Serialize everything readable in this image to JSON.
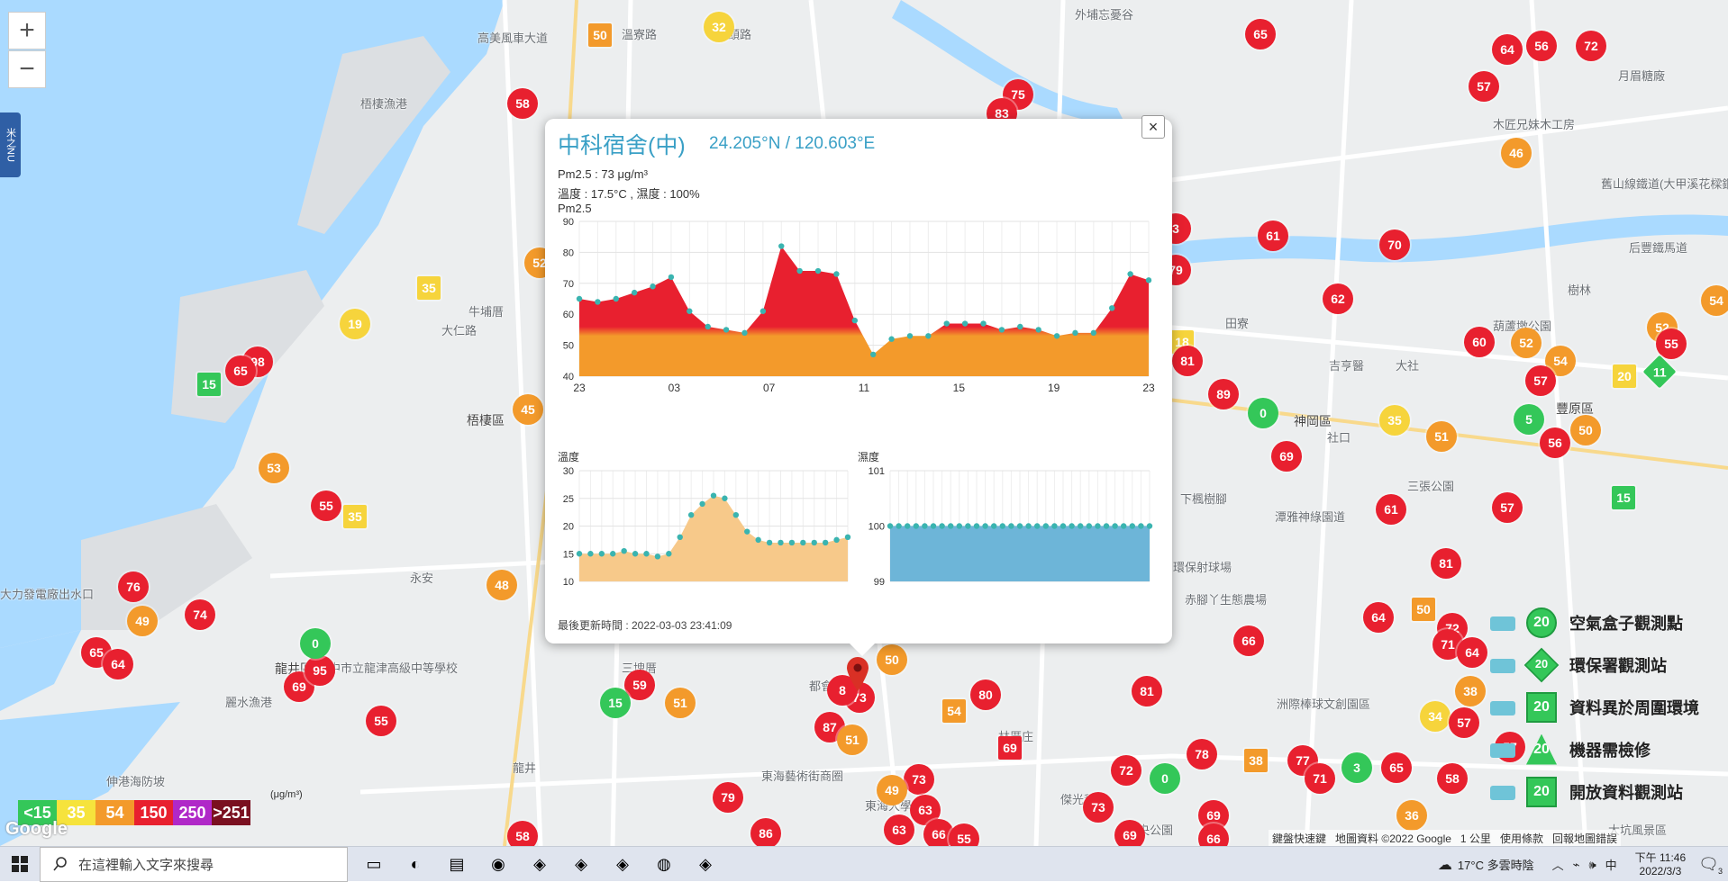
{
  "zoom": {
    "in_label": "+",
    "out_label": "−"
  },
  "side_tab": {
    "label": "米之NU"
  },
  "map_labels": [
    {
      "text": "高美風車大道",
      "x": 530,
      "y": 32
    },
    {
      "text": "梧棲漁港",
      "x": 400,
      "y": 105
    },
    {
      "text": "梧棲區",
      "x": 518,
      "y": 457,
      "dark": true
    },
    {
      "text": "牛埔厝",
      "x": 520,
      "y": 336
    },
    {
      "text": "大仁路",
      "x": 490,
      "y": 357
    },
    {
      "text": "龍井區",
      "x": 305,
      "y": 733,
      "dark": true
    },
    {
      "text": "臺中市立龍津高級中等學校",
      "x": 352,
      "y": 732
    },
    {
      "text": "麗水漁港",
      "x": 250,
      "y": 770
    },
    {
      "text": "大力發電廠出水口",
      "x": 0,
      "y": 650
    },
    {
      "text": "伸港海防坡",
      "x": 118,
      "y": 858
    },
    {
      "text": "永安",
      "x": 455,
      "y": 632
    },
    {
      "text": "三塊厝",
      "x": 690,
      "y": 732
    },
    {
      "text": "龍井",
      "x": 569,
      "y": 843
    },
    {
      "text": "東海藝術街商圈",
      "x": 845,
      "y": 852
    },
    {
      "text": "東海大學",
      "x": 960,
      "y": 885
    },
    {
      "text": "都會",
      "x": 898,
      "y": 752
    },
    {
      "text": "林厝庄",
      "x": 1108,
      "y": 808
    },
    {
      "text": "傑光科技",
      "x": 1177,
      "y": 878
    },
    {
      "text": "中央公園",
      "x": 1250,
      "y": 912
    },
    {
      "text": "洲際棒球文創園區",
      "x": 1417,
      "y": 772
    },
    {
      "text": "環保射球場",
      "x": 1302,
      "y": 620
    },
    {
      "text": "赤腳丫生態農場",
      "x": 1315,
      "y": 656
    },
    {
      "text": "下楓樹腳",
      "x": 1310,
      "y": 544
    },
    {
      "text": "潭雅神綠園道",
      "x": 1415,
      "y": 564
    },
    {
      "text": "三張公園",
      "x": 1562,
      "y": 530
    },
    {
      "text": "神岡區",
      "x": 1436,
      "y": 458,
      "dark": true
    },
    {
      "text": "社口",
      "x": 1473,
      "y": 476
    },
    {
      "text": "大社",
      "x": 1549,
      "y": 396
    },
    {
      "text": "吉亨醫",
      "x": 1475,
      "y": 396
    },
    {
      "text": "田寮",
      "x": 1360,
      "y": 349
    },
    {
      "text": "后豐鐵馬道",
      "x": 1808,
      "y": 265
    },
    {
      "text": "舊山線鐵道(大甲溪花樑鋼)",
      "x": 1777,
      "y": 194
    },
    {
      "text": "豐原區",
      "x": 1727,
      "y": 444,
      "dark": true
    },
    {
      "text": "葫蘆墩公園",
      "x": 1657,
      "y": 352
    },
    {
      "text": "樹林",
      "x": 1740,
      "y": 312
    },
    {
      "text": "木匠兄妹木工房",
      "x": 1657,
      "y": 128
    },
    {
      "text": "月眉糖廠",
      "x": 1796,
      "y": 74
    },
    {
      "text": "外埔忘憂谷",
      "x": 1193,
      "y": 6
    },
    {
      "text": "大坑風景區",
      "x": 1785,
      "y": 912
    },
    {
      "text": "溪頭路",
      "x": 795,
      "y": 28
    },
    {
      "text": "溫寮路",
      "x": 690,
      "y": 28
    }
  ],
  "markers": [
    {
      "v": "58",
      "x": 580,
      "y": 115,
      "c": "#e8202f"
    },
    {
      "v": "50",
      "x": 666,
      "y": 39,
      "c": "#f39a2b",
      "shape": "sq"
    },
    {
      "v": "32",
      "x": 798,
      "y": 30,
      "c": "#f6d43c"
    },
    {
      "v": "75",
      "x": 1130,
      "y": 105,
      "c": "#e8202f"
    },
    {
      "v": "83",
      "x": 1112,
      "y": 126,
      "c": "#e8202f"
    },
    {
      "v": "65",
      "x": 1399,
      "y": 38,
      "c": "#e8202f"
    },
    {
      "v": "64",
      "x": 1673,
      "y": 55,
      "c": "#e8202f"
    },
    {
      "v": "56",
      "x": 1711,
      "y": 51,
      "c": "#e8202f"
    },
    {
      "v": "72",
      "x": 1766,
      "y": 51,
      "c": "#e8202f"
    },
    {
      "v": "57",
      "x": 1647,
      "y": 96,
      "c": "#e8202f"
    },
    {
      "v": "46",
      "x": 1683,
      "y": 170,
      "c": "#f39a2b"
    },
    {
      "v": "61",
      "x": 1413,
      "y": 262,
      "c": "#e8202f"
    },
    {
      "v": "70",
      "x": 1548,
      "y": 272,
      "c": "#e8202f"
    },
    {
      "v": "62",
      "x": 1485,
      "y": 332,
      "c": "#e8202f"
    },
    {
      "v": "60",
      "x": 1642,
      "y": 380,
      "c": "#e8202f"
    },
    {
      "v": "52",
      "x": 1694,
      "y": 381,
      "c": "#f39a2b"
    },
    {
      "v": "54",
      "x": 1732,
      "y": 401,
      "c": "#f39a2b"
    },
    {
      "v": "57",
      "x": 1710,
      "y": 423,
      "c": "#e8202f"
    },
    {
      "v": "52",
      "x": 1845,
      "y": 364,
      "c": "#f39a2b"
    },
    {
      "v": "55",
      "x": 1855,
      "y": 382,
      "c": "#e8202f"
    },
    {
      "v": "11",
      "x": 1842,
      "y": 413,
      "c": "#34c759",
      "shape": "dm"
    },
    {
      "v": "20",
      "x": 1803,
      "y": 418,
      "c": "#f6d43c",
      "shape": "sq"
    },
    {
      "v": "54",
      "x": 1905,
      "y": 334,
      "c": "#f39a2b"
    },
    {
      "v": "89",
      "x": 1358,
      "y": 438,
      "c": "#e8202f"
    },
    {
      "v": "0",
      "x": 1402,
      "y": 459,
      "c": "#34c759"
    },
    {
      "v": "35",
      "x": 1548,
      "y": 467,
      "c": "#f6d43c"
    },
    {
      "v": "51",
      "x": 1600,
      "y": 485,
      "c": "#f39a2b"
    },
    {
      "v": "5",
      "x": 1697,
      "y": 466,
      "c": "#34c759"
    },
    {
      "v": "50",
      "x": 1760,
      "y": 478,
      "c": "#f39a2b"
    },
    {
      "v": "56",
      "x": 1726,
      "y": 492,
      "c": "#e8202f"
    },
    {
      "v": "69",
      "x": 1428,
      "y": 507,
      "c": "#e8202f"
    },
    {
      "v": "61",
      "x": 1544,
      "y": 566,
      "c": "#e8202f"
    },
    {
      "v": "57",
      "x": 1673,
      "y": 564,
      "c": "#e8202f"
    },
    {
      "v": "15",
      "x": 1802,
      "y": 553,
      "c": "#34c759",
      "shape": "sq"
    },
    {
      "v": "81",
      "x": 1605,
      "y": 626,
      "c": "#e8202f"
    },
    {
      "v": "64",
      "x": 1530,
      "y": 686,
      "c": "#e8202f"
    },
    {
      "v": "50",
      "x": 1580,
      "y": 677,
      "c": "#f39a2b",
      "shape": "sq"
    },
    {
      "v": "72",
      "x": 1612,
      "y": 698,
      "c": "#e8202f"
    },
    {
      "v": "71",
      "x": 1607,
      "y": 716,
      "c": "#e8202f"
    },
    {
      "v": "64",
      "x": 1634,
      "y": 725,
      "c": "#e8202f"
    },
    {
      "v": "66",
      "x": 1386,
      "y": 712,
      "c": "#e8202f"
    },
    {
      "v": "38",
      "x": 1632,
      "y": 768,
      "c": "#f39a2b"
    },
    {
      "v": "34",
      "x": 1593,
      "y": 796,
      "c": "#f6d43c"
    },
    {
      "v": "57",
      "x": 1625,
      "y": 803,
      "c": "#e8202f"
    },
    {
      "v": "81",
      "x": 1273,
      "y": 768,
      "c": "#e8202f"
    },
    {
      "v": "80",
      "x": 1094,
      "y": 772,
      "c": "#e8202f"
    },
    {
      "v": "54",
      "x": 1059,
      "y": 790,
      "c": "#f39a2b",
      "shape": "sq"
    },
    {
      "v": "69",
      "x": 1121,
      "y": 831,
      "c": "#e8202f",
      "shape": "sq"
    },
    {
      "v": "78",
      "x": 1334,
      "y": 838,
      "c": "#e8202f"
    },
    {
      "v": "38",
      "x": 1394,
      "y": 845,
      "c": "#f39a2b",
      "shape": "sq"
    },
    {
      "v": "77",
      "x": 1446,
      "y": 845,
      "c": "#e8202f"
    },
    {
      "v": "71",
      "x": 1465,
      "y": 865,
      "c": "#e8202f"
    },
    {
      "v": "3",
      "x": 1506,
      "y": 853,
      "c": "#34c759"
    },
    {
      "v": "65",
      "x": 1550,
      "y": 853,
      "c": "#e8202f"
    },
    {
      "v": "58",
      "x": 1612,
      "y": 865,
      "c": "#e8202f"
    },
    {
      "v": "72",
      "x": 1250,
      "y": 856,
      "c": "#e8202f"
    },
    {
      "v": "0",
      "x": 1293,
      "y": 865,
      "c": "#34c759"
    },
    {
      "v": "73",
      "x": 1219,
      "y": 897,
      "c": "#e8202f"
    },
    {
      "v": "69",
      "x": 1347,
      "y": 906,
      "c": "#e8202f"
    },
    {
      "v": "36",
      "x": 1567,
      "y": 906,
      "c": "#f39a2b"
    },
    {
      "v": "69",
      "x": 1254,
      "y": 928,
      "c": "#e8202f"
    },
    {
      "v": "66",
      "x": 1347,
      "y": 932,
      "c": "#e8202f"
    },
    {
      "v": "57",
      "x": 1676,
      "y": 830,
      "c": "#e8202f"
    },
    {
      "v": "50",
      "x": 990,
      "y": 733,
      "c": "#f39a2b"
    },
    {
      "v": "73",
      "x": 954,
      "y": 775,
      "c": "#e8202f"
    },
    {
      "v": "8",
      "x": 935,
      "y": 767,
      "c": "#e8202f"
    },
    {
      "v": "87",
      "x": 921,
      "y": 808,
      "c": "#e8202f"
    },
    {
      "v": "51",
      "x": 946,
      "y": 822,
      "c": "#f39a2b"
    },
    {
      "v": "73",
      "x": 1020,
      "y": 866,
      "c": "#e8202f"
    },
    {
      "v": "49",
      "x": 990,
      "y": 878,
      "c": "#f39a2b"
    },
    {
      "v": "63",
      "x": 1027,
      "y": 900,
      "c": "#e8202f"
    },
    {
      "v": "63",
      "x": 998,
      "y": 922,
      "c": "#e8202f"
    },
    {
      "v": "66",
      "x": 1042,
      "y": 927,
      "c": "#e8202f"
    },
    {
      "v": "79",
      "x": 808,
      "y": 886,
      "c": "#e8202f"
    },
    {
      "v": "86",
      "x": 850,
      "y": 926,
      "c": "#e8202f"
    },
    {
      "v": "59",
      "x": 710,
      "y": 761,
      "c": "#e8202f"
    },
    {
      "v": "15",
      "x": 683,
      "y": 781,
      "c": "#34c759"
    },
    {
      "v": "51",
      "x": 755,
      "y": 781,
      "c": "#f39a2b"
    },
    {
      "v": "55",
      "x": 423,
      "y": 801,
      "c": "#e8202f"
    },
    {
      "v": "69",
      "x": 332,
      "y": 763,
      "c": "#e8202f"
    },
    {
      "v": "95",
      "x": 355,
      "y": 745,
      "c": "#e8202f"
    },
    {
      "v": "0",
      "x": 350,
      "y": 715,
      "c": "#34c759"
    },
    {
      "v": "48",
      "x": 557,
      "y": 650,
      "c": "#f39a2b"
    },
    {
      "v": "74",
      "x": 222,
      "y": 683,
      "c": "#e8202f"
    },
    {
      "v": "76",
      "x": 148,
      "y": 652,
      "c": "#e8202f"
    },
    {
      "v": "49",
      "x": 158,
      "y": 690,
      "c": "#f39a2b"
    },
    {
      "v": "65",
      "x": 107,
      "y": 725,
      "c": "#e8202f"
    },
    {
      "v": "64",
      "x": 131,
      "y": 738,
      "c": "#e8202f"
    },
    {
      "v": "55",
      "x": 362,
      "y": 562,
      "c": "#e8202f"
    },
    {
      "v": "35",
      "x": 394,
      "y": 574,
      "c": "#f6d43c",
      "shape": "sq"
    },
    {
      "v": "53",
      "x": 304,
      "y": 520,
      "c": "#f39a2b"
    },
    {
      "v": "45",
      "x": 586,
      "y": 455,
      "c": "#f39a2b"
    },
    {
      "v": "35",
      "x": 476,
      "y": 320,
      "c": "#f6d43c",
      "shape": "sq"
    },
    {
      "v": "19",
      "x": 394,
      "y": 360,
      "c": "#f6d43c"
    },
    {
      "v": "98",
      "x": 286,
      "y": 402,
      "c": "#e8202f"
    },
    {
      "v": "65",
      "x": 267,
      "y": 412,
      "c": "#e8202f"
    },
    {
      "v": "15",
      "x": 232,
      "y": 427,
      "c": "#34c759",
      "shape": "sq"
    },
    {
      "v": "52",
      "x": 599,
      "y": 292,
      "c": "#f39a2b"
    },
    {
      "v": "58",
      "x": 580,
      "y": 929,
      "c": "#e8202f"
    },
    {
      "v": "55",
      "x": 1070,
      "y": 932,
      "c": "#e8202f"
    },
    {
      "v": "18",
      "x": 1312,
      "y": 380,
      "c": "#f6d43c",
      "shape": "sq"
    },
    {
      "v": "81",
      "x": 1318,
      "y": 401,
      "c": "#e8202f"
    },
    {
      "v": "79",
      "x": 1305,
      "y": 300,
      "c": "#e8202f"
    },
    {
      "v": "3",
      "x": 1305,
      "y": 254,
      "c": "#e8202f"
    }
  ],
  "popup": {
    "name": "中科宿舍(中)",
    "coords": "24.205°N / 120.603°E",
    "pm25": "Pm2.5 : 73 μg/m³",
    "temp_humidity": "溫度 : 17.5°C , 濕度 : 100%",
    "chart_title": "Pm2.5",
    "temp_title": "溫度",
    "hum_title": "濕度",
    "updated": "最後更新時間 : 2022-03-03 23:41:09",
    "close_label": "×"
  },
  "chart_data": [
    {
      "type": "area",
      "title": "Pm2.5",
      "x_tick_labels": [
        "23",
        "03",
        "07",
        "11",
        "15",
        "19",
        "23"
      ],
      "ylim": [
        40,
        90
      ],
      "y_ticks": [
        40,
        50,
        60,
        70,
        80,
        90
      ],
      "values": [
        65,
        64,
        65,
        67,
        69,
        72,
        61,
        56,
        55,
        54,
        61,
        82,
        74,
        74,
        73,
        58,
        47,
        52,
        53,
        53,
        57,
        57,
        57,
        55,
        56,
        55,
        53,
        54,
        54,
        62,
        73,
        71
      ],
      "colors": {
        "high": "#e8202f",
        "low": "#f39a2b",
        "point": "#3ab4b0"
      }
    },
    {
      "type": "area",
      "title": "溫度",
      "ylim": [
        10,
        30
      ],
      "y_ticks": [
        10,
        15,
        20,
        25,
        30
      ],
      "values": [
        15,
        15,
        15,
        15,
        15.5,
        15,
        15,
        14.5,
        15,
        18,
        22,
        24,
        25.5,
        25,
        22,
        19,
        17.5,
        17,
        17,
        17,
        17,
        17,
        17,
        17.5,
        18
      ],
      "colors": {
        "fill": "#f7c98a",
        "point": "#3ab4b0"
      }
    },
    {
      "type": "area",
      "title": "濕度",
      "ylim": [
        99,
        101
      ],
      "y_ticks": [
        99,
        100,
        101
      ],
      "values": [
        100,
        100,
        100,
        100,
        100,
        100,
        100,
        100,
        100,
        100,
        100,
        100,
        100,
        100,
        100,
        100,
        100,
        100,
        100,
        100,
        100,
        100,
        100,
        100,
        100,
        100,
        100,
        100,
        100,
        100,
        100
      ],
      "colors": {
        "fill": "#6db5d8",
        "point": "#3ab4b0"
      }
    }
  ],
  "aqi_scale": {
    "unit": "(μg/m³)",
    "cells": [
      {
        "label": "<15",
        "color": "#34c759"
      },
      {
        "label": "35",
        "color": "#f6e33c"
      },
      {
        "label": "54",
        "color": "#f39a2b"
      },
      {
        "label": "150",
        "color": "#e8202f"
      },
      {
        "label": "250",
        "color": "#b028c8"
      },
      {
        "label": ">251",
        "color": "#7a1020"
      }
    ]
  },
  "station_legend": [
    {
      "label": "空氣盒子觀測點",
      "value": "20",
      "shape": "circle"
    },
    {
      "label": "環保署觀測站",
      "value": "20",
      "shape": "diamond"
    },
    {
      "label": "資料異於周圍環境",
      "value": "20",
      "shape": "square"
    },
    {
      "label": "機器需檢修",
      "value": "20",
      "shape": "triangle"
    },
    {
      "label": "開放資料觀測站",
      "value": "20",
      "shape": "square"
    }
  ],
  "google_logo": "Google",
  "attribution": [
    "鍵盤快速鍵",
    "地圖資料 ©2022 Google",
    "1 公里",
    "使用條款",
    "回報地圖錯誤"
  ],
  "taskbar": {
    "search_placeholder": "在這裡輸入文字來搜尋",
    "weather": "17°C 多雲時陰",
    "ime": "中",
    "time": "下午 11:46",
    "date": "2022/3/3",
    "notif_count": "3",
    "apps": [
      "task-view-icon",
      "edge-icon",
      "file-explorer-icon",
      "chrome-icon",
      "app-icon",
      "app-icon",
      "app-icon",
      "blender-icon",
      "app-icon"
    ]
  }
}
